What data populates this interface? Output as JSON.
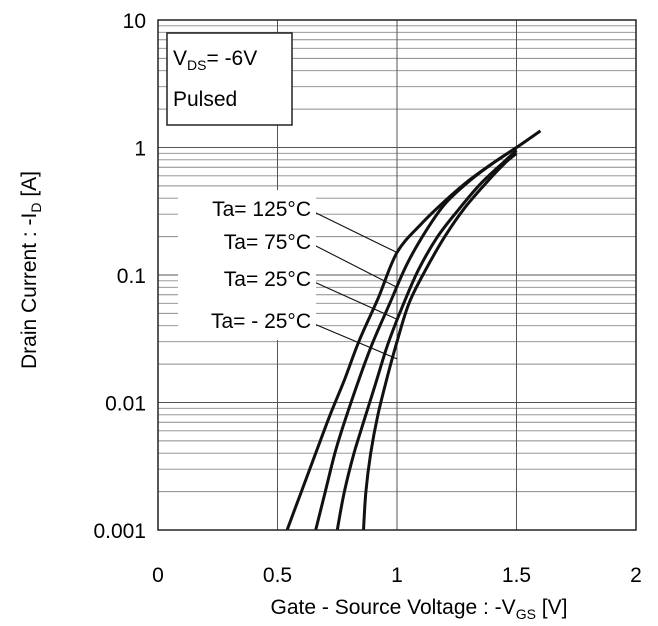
{
  "chart_data": {
    "type": "line",
    "xlabel": {
      "main": "Gate - Source Voltage : -V",
      "sub": "GS",
      "unit": " [V]"
    },
    "ylabel": {
      "main": "Drain Current : -I",
      "sub": "D",
      "unit": " [A]"
    },
    "xlim": [
      0,
      2
    ],
    "ylim": [
      0.001,
      10
    ],
    "yscale": "log",
    "grid": true,
    "x_ticks": [
      "0",
      "0.5",
      "1",
      "1.5",
      "2"
    ],
    "y_ticks": [
      "0.001",
      "0.01",
      "0.1",
      "1",
      "10"
    ],
    "conditions": {
      "line1_main": "V",
      "line1_sub": "DS",
      "line1_rest": "= -6V",
      "line2": "Pulsed"
    },
    "legend_labels": [
      "Ta= 125°C",
      "Ta= 75°C",
      "Ta= 25°C",
      "Ta= - 25°C"
    ],
    "series": [
      {
        "name": "Ta= 125°C",
        "x": [
          0.54,
          0.6,
          0.66,
          0.72,
          0.78,
          0.84,
          0.92,
          1.0,
          1.1,
          1.2,
          1.3,
          1.4,
          1.5,
          1.6
        ],
        "y": [
          0.001,
          0.002,
          0.004,
          0.008,
          0.015,
          0.03,
          0.065,
          0.15,
          0.25,
          0.38,
          0.55,
          0.75,
          1.0,
          1.35
        ]
      },
      {
        "name": "Ta= 75°C",
        "x": [
          0.66,
          0.7,
          0.74,
          0.78,
          0.84,
          0.9,
          0.97,
          1.04,
          1.12,
          1.2,
          1.3,
          1.4,
          1.5
        ],
        "y": [
          0.001,
          0.002,
          0.004,
          0.007,
          0.015,
          0.03,
          0.06,
          0.12,
          0.22,
          0.36,
          0.54,
          0.75,
          1.0
        ]
      },
      {
        "name": "Ta= 25°C",
        "x": [
          0.75,
          0.78,
          0.82,
          0.86,
          0.91,
          0.96,
          1.02,
          1.09,
          1.17,
          1.26,
          1.35,
          1.45,
          1.5
        ],
        "y": [
          0.001,
          0.002,
          0.004,
          0.007,
          0.014,
          0.028,
          0.055,
          0.11,
          0.2,
          0.33,
          0.52,
          0.78,
          0.95
        ]
      },
      {
        "name": "Ta= - 25°C",
        "x": [
          0.86,
          0.87,
          0.89,
          0.92,
          0.96,
          1.0,
          1.05,
          1.12,
          1.2,
          1.28,
          1.37,
          1.45,
          1.5
        ],
        "y": [
          0.001,
          0.002,
          0.004,
          0.008,
          0.016,
          0.03,
          0.06,
          0.11,
          0.2,
          0.33,
          0.52,
          0.75,
          0.9
        ]
      }
    ]
  }
}
